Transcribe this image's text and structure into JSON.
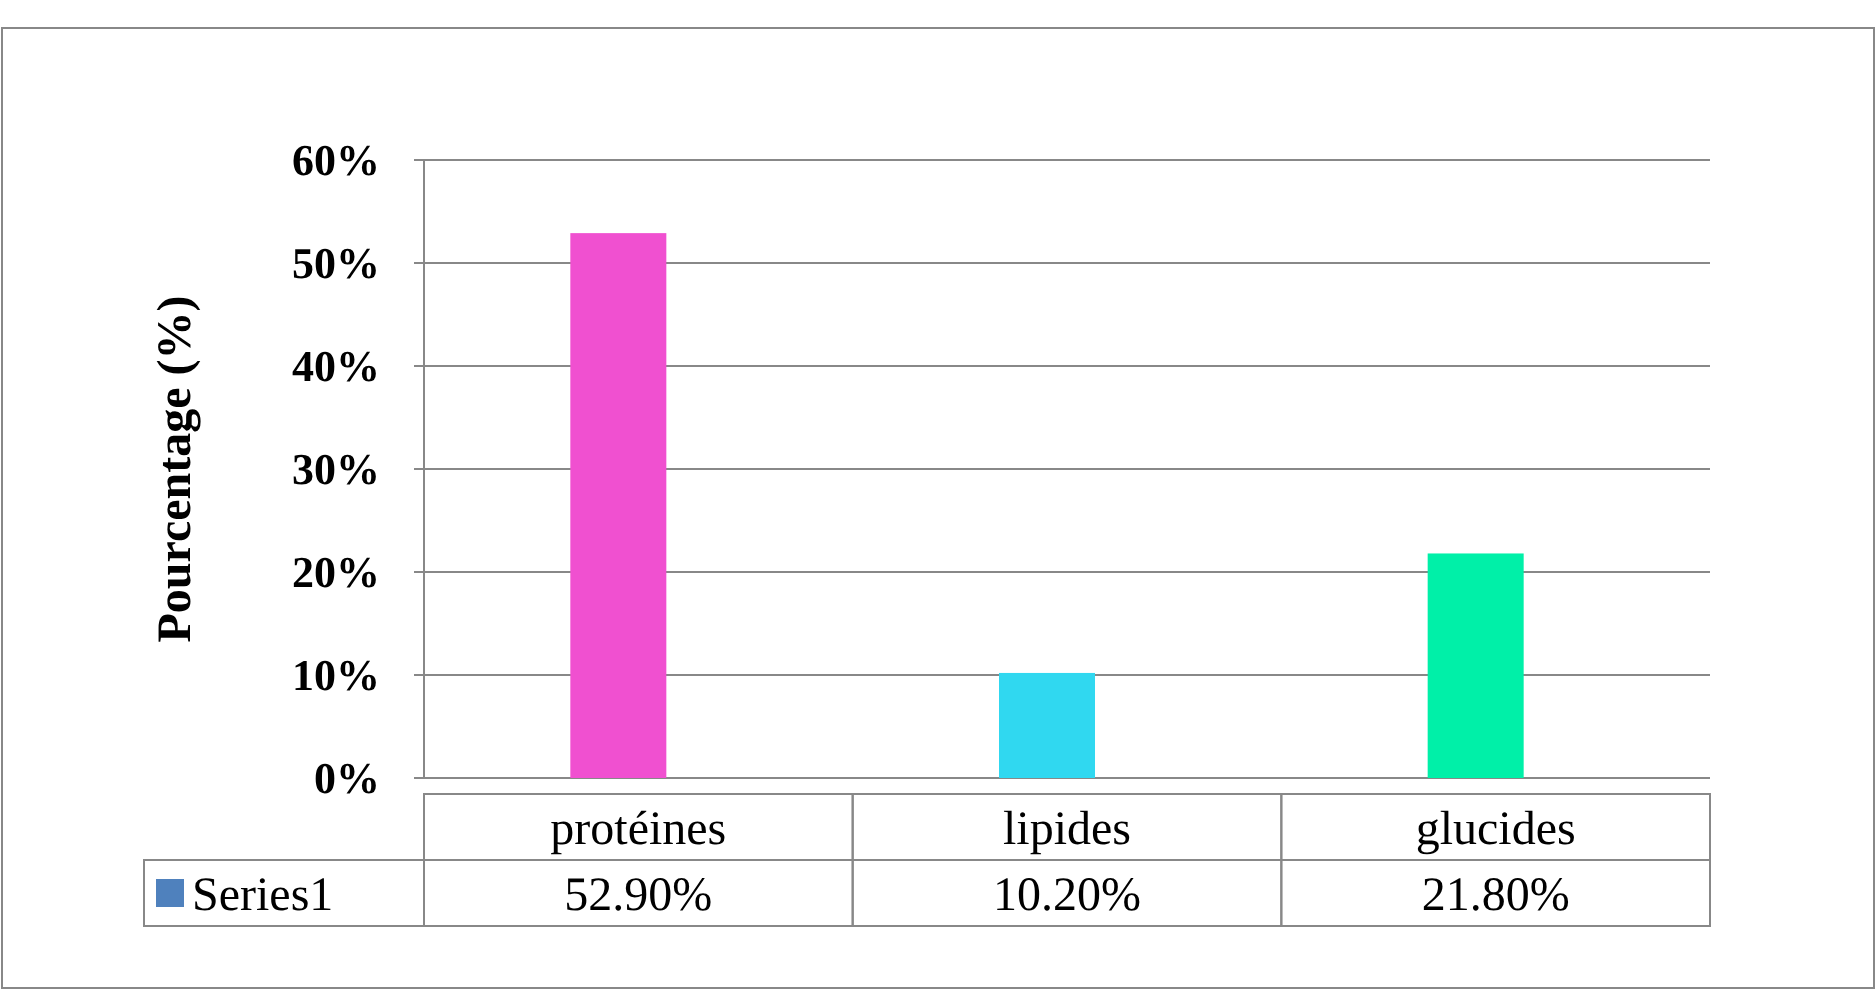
{
  "chart_data": {
    "type": "bar",
    "ylabel": "Pourcentage (%)",
    "categories": [
      "protéines",
      "lipides",
      "glucides"
    ],
    "series": [
      {
        "name": "Series1",
        "color": "#4f81bd",
        "colors": [
          "#f050d0",
          "#30d8f0",
          "#00f0a8"
        ],
        "values": [
          52.9,
          10.2,
          21.8
        ],
        "value_labels": [
          "52.90%",
          "10.20%",
          "21.80%"
        ]
      }
    ],
    "ylim": [
      0,
      60
    ],
    "yticks": [
      {
        "value": 0,
        "label": "0%"
      },
      {
        "value": 10,
        "label": "10%"
      },
      {
        "value": 20,
        "label": "20%"
      },
      {
        "value": 30,
        "label": "30%"
      },
      {
        "value": 40,
        "label": "40%"
      },
      {
        "value": 50,
        "label": "50%"
      },
      {
        "value": 60,
        "label": "60%"
      }
    ],
    "grid": "y",
    "legend": "bottom"
  }
}
